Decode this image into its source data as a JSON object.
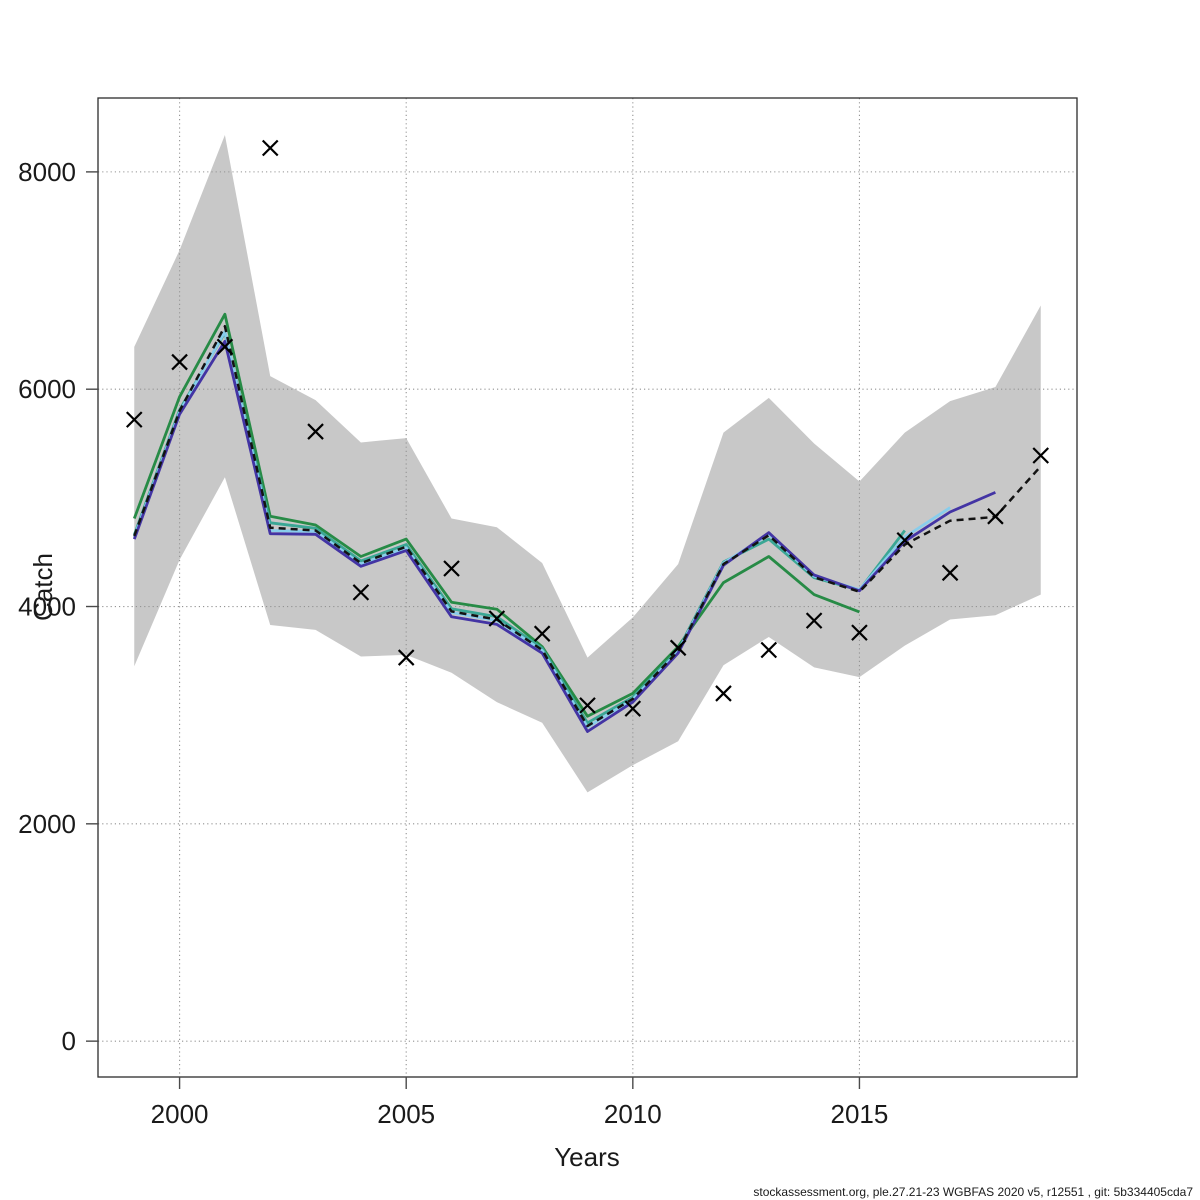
{
  "page": {
    "background": "#ffffff"
  },
  "footer": {
    "text": "stockassessment.org, ple.27.21-23 WGBFAS 2020 v5, r12551 , git: 5b334405cda7"
  },
  "chart_data": {
    "type": "line",
    "title": "",
    "xlabel": "Years",
    "ylabel": "Catch",
    "grid": "dotted",
    "legend": "none",
    "xlim": [
      1998.2,
      2019.8
    ],
    "ylim": [
      -330,
      8680
    ],
    "x_ticks": [
      2000,
      2005,
      2010,
      2015
    ],
    "y_ticks": [
      0,
      2000,
      4000,
      6000,
      8000
    ],
    "years": [
      1999,
      2000,
      2001,
      2002,
      2003,
      2004,
      2005,
      2006,
      2007,
      2008,
      2009,
      2010,
      2011,
      2012,
      2013,
      2014,
      2015,
      2016,
      2017,
      2018,
      2019
    ],
    "confidence_band": {
      "name": "fit-confidence-band",
      "color": "#c8c8c8",
      "lower": [
        3450,
        4430,
        5190,
        3830,
        3785,
        3540,
        3555,
        3390,
        3120,
        2930,
        2290,
        2540,
        2760,
        3460,
        3720,
        3440,
        3350,
        3640,
        3880,
        3920,
        4110
      ],
      "upper": [
        6390,
        7280,
        8340,
        6120,
        5900,
        5510,
        5550,
        4810,
        4730,
        4400,
        3530,
        3900,
        4390,
        5600,
        5920,
        5500,
        5150,
        5600,
        5890,
        6020,
        6770
      ]
    },
    "series": [
      {
        "name": "retro-run-2015",
        "color": "#278b46",
        "dash": "none",
        "width": 2.8,
        "start_year": 1999,
        "values": [
          4810,
          5930,
          6690,
          4830,
          4750,
          4460,
          4620,
          4040,
          3975,
          3630,
          2990,
          3200,
          3630,
          4220,
          4460,
          4110,
          3950
        ]
      },
      {
        "name": "retro-run-2016",
        "color": "#3aa795",
        "dash": "none",
        "width": 2.8,
        "start_year": 1999,
        "values": [
          4660,
          5810,
          6520,
          4770,
          4720,
          4420,
          4570,
          3980,
          3905,
          3615,
          2930,
          3165,
          3600,
          4410,
          4620,
          4265,
          4150,
          4700
        ]
      },
      {
        "name": "retro-run-2017",
        "color": "#88cdec",
        "dash": "none",
        "width": 2.8,
        "start_year": 1999,
        "values": [
          4640,
          5790,
          6530,
          4700,
          4690,
          4390,
          4540,
          3945,
          3870,
          3595,
          2890,
          3145,
          3585,
          4400,
          4665,
          4280,
          4155,
          4640,
          4910
        ]
      },
      {
        "name": "retro-run-2018",
        "color": "#4334a4",
        "dash": "none",
        "width": 2.8,
        "start_year": 1999,
        "values": [
          4620,
          5770,
          6440,
          4670,
          4665,
          4370,
          4515,
          3905,
          3835,
          3570,
          2850,
          3120,
          3570,
          4380,
          4680,
          4290,
          4145,
          4600,
          4870,
          5050
        ]
      },
      {
        "name": "fit-estimate-dashed",
        "color": "#131313",
        "dash": "7 5",
        "width": 2.5,
        "start_year": 1999,
        "values": [
          4650,
          5800,
          6580,
          4725,
          4700,
          4400,
          4550,
          3955,
          3880,
          3600,
          2900,
          3150,
          3590,
          4390,
          4655,
          4270,
          4135,
          4570,
          4790,
          4825,
          5290
        ]
      }
    ],
    "observed": {
      "name": "observed-catches",
      "marker": "x",
      "color": "#000000",
      "values": [
        5720,
        6250,
        6390,
        8220,
        5610,
        4130,
        3530,
        4350,
        3890,
        3750,
        3090,
        3060,
        3620,
        3200,
        3600,
        3870,
        3760,
        4610,
        4310,
        4830,
        5390
      ]
    }
  }
}
